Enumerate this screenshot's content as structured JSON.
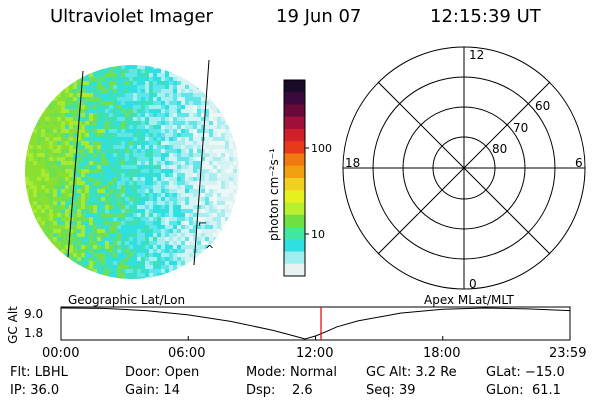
{
  "header": {
    "instrument": "Ultraviolet Imager",
    "date": "19 Jun 07",
    "time": "12:15:39 UT"
  },
  "colorbar": {
    "unit_label": "photon cm⁻²s⁻¹",
    "tick_labels": [
      "100",
      "10"
    ],
    "colors_top_to_bottom": [
      "#1a0a2a",
      "#3a0a3a",
      "#6a0a3a",
      "#a0103a",
      "#d0202a",
      "#e83a1a",
      "#f07a10",
      "#f0a010",
      "#f0d020",
      "#e8f020",
      "#b8f030",
      "#70e040",
      "#40e8a0",
      "#30e0e0",
      "#a0eef0",
      "#e8f4f4"
    ]
  },
  "image_labels": {
    "left": "Geographic Lat/Lon",
    "right": "Apex MLat/MLT"
  },
  "polar_grid": {
    "mlt_labels": {
      "top": "12",
      "bottom": "0",
      "left": "18",
      "right": "6"
    },
    "lat_labels": [
      "60",
      "70",
      "80"
    ]
  },
  "chart_data": {
    "type": "line",
    "title": "",
    "xlabel": "",
    "ylabel": "GC Alt",
    "x_tick_labels": [
      "00:00",
      "06:00",
      "12:00",
      "18:00",
      "23:59"
    ],
    "y_tick_labels": [
      "9.0",
      "1.8"
    ],
    "xlim": [
      0,
      24
    ],
    "ylim": [
      1.8,
      9.0
    ],
    "series": [
      {
        "x": [
          0,
          2,
          4,
          6,
          8,
          10,
          11,
          11.5,
          12,
          12.5,
          13,
          14,
          16,
          18,
          20,
          22,
          24
        ],
        "y": [
          9.0,
          8.9,
          8.4,
          7.4,
          5.9,
          3.8,
          2.5,
          1.8,
          2.5,
          3.5,
          4.6,
          6.0,
          7.8,
          8.7,
          9.0,
          8.8,
          8.4
        ]
      }
    ],
    "current_time_marker": 12.26,
    "marker_color": "#e00000"
  },
  "status": {
    "flt_label": "Flt:",
    "flt_value": "LBHL",
    "ip_label": "IP:",
    "ip_value": "36.0",
    "door_label": "Door:",
    "door_value": "Open",
    "gain_label": "Gain:",
    "gain_value": "14",
    "mode_label": "Mode:",
    "mode_value": "Normal",
    "dsp_label": "Dsp:",
    "dsp_value": "2.6",
    "gcalt_label": "GC Alt:",
    "gcalt_value": "3.2 Re",
    "seq_label": "Seq:",
    "seq_value": "39",
    "glat_label": "GLat:",
    "glat_value": "−15.0",
    "glon_label": "GLon:",
    "glon_value": "61.1"
  }
}
